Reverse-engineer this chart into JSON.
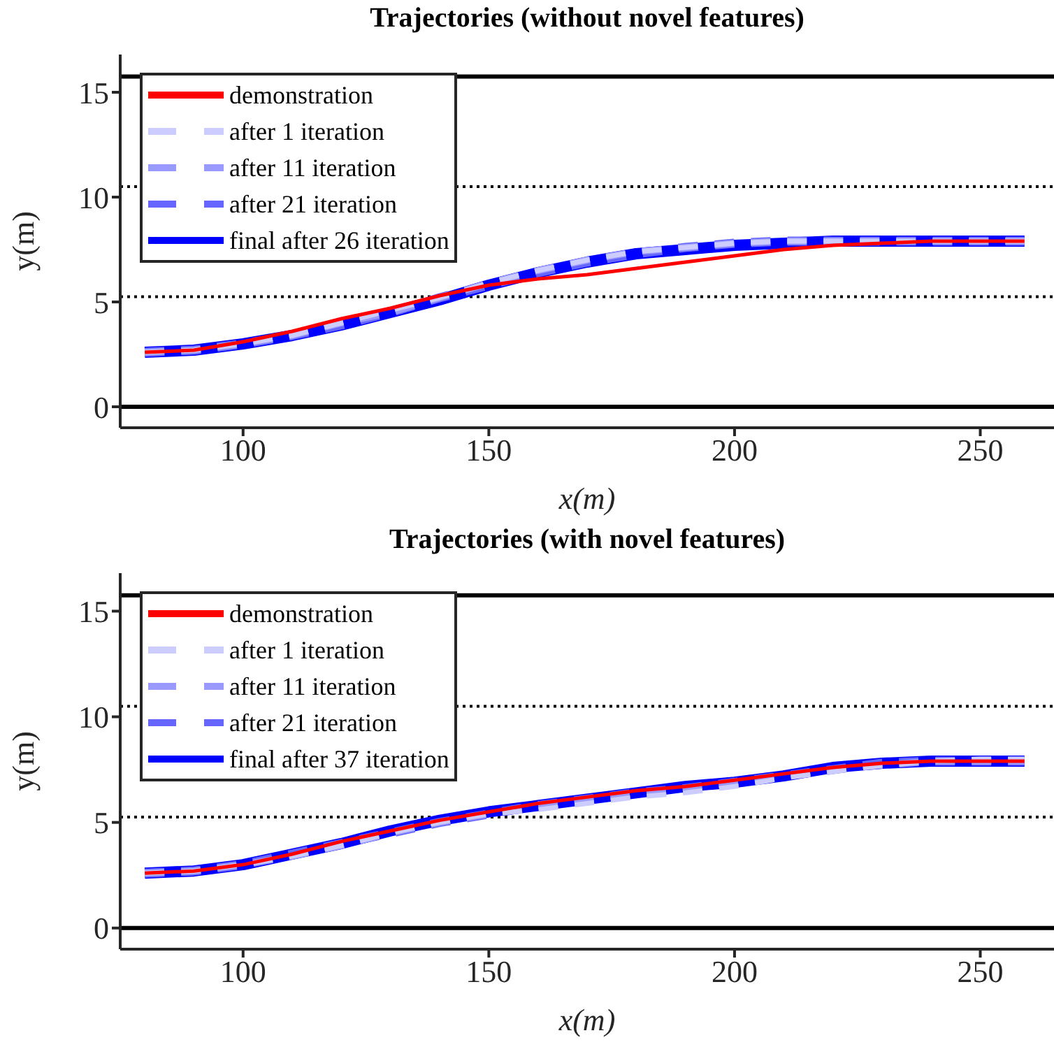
{
  "chart_data": [
    {
      "type": "line",
      "title": "Trajectories (without novel features)",
      "xlabel": "x(m)",
      "ylabel": "y(m)",
      "xlim": [
        75,
        265
      ],
      "xticks": [
        100,
        150,
        200,
        250
      ],
      "ylim": [
        -1,
        16.8
      ],
      "yticks": [
        0,
        5,
        10,
        15
      ],
      "grid": false,
      "legend": "top left",
      "marker": "none",
      "ref_lines": [
        {
          "axis": "y",
          "value": 0,
          "color": "#000000",
          "line_style": "solid"
        },
        {
          "axis": "y",
          "value": 5.25,
          "color": "#000000",
          "line_style": "dotted"
        },
        {
          "axis": "y",
          "value": 10.5,
          "color": "#000000",
          "line_style": "dotted"
        },
        {
          "axis": "y",
          "value": 15.75,
          "color": "#000000",
          "line_style": "solid"
        }
      ],
      "x": [
        80,
        90,
        100,
        110,
        120,
        130,
        140,
        150,
        160,
        170,
        180,
        190,
        200,
        210,
        220,
        230,
        240,
        250,
        259
      ],
      "series": [
        {
          "name": "demonstration",
          "color": "#ff0000",
          "line_style": "solid",
          "values": [
            2.6,
            2.7,
            3.1,
            3.6,
            4.2,
            4.7,
            5.3,
            5.8,
            6.1,
            6.3,
            6.6,
            6.9,
            7.2,
            7.5,
            7.7,
            7.8,
            7.9,
            7.9,
            7.9
          ]
        },
        {
          "name": "after 1 iteration",
          "color": "#ccccff",
          "line_style": "dashed",
          "values": [
            2.6,
            2.7,
            3.0,
            3.4,
            4.0,
            4.6,
            5.2,
            5.9,
            6.5,
            7.0,
            7.4,
            7.6,
            7.8,
            7.9,
            7.9,
            7.9,
            7.9,
            7.9,
            7.9
          ]
        },
        {
          "name": "after 11 iteration",
          "color": "#9999ff",
          "line_style": "dashed",
          "values": [
            2.6,
            2.7,
            3.0,
            3.4,
            4.0,
            4.5,
            5.2,
            5.9,
            6.5,
            7.0,
            7.4,
            7.6,
            7.8,
            7.9,
            7.9,
            7.9,
            7.9,
            7.9,
            7.9
          ]
        },
        {
          "name": "after 21 iteration",
          "color": "#6666ff",
          "line_style": "dashed",
          "values": [
            2.6,
            2.7,
            3.0,
            3.4,
            3.9,
            4.5,
            5.2,
            5.8,
            6.4,
            6.9,
            7.3,
            7.6,
            7.8,
            7.9,
            7.9,
            7.9,
            7.9,
            7.9,
            7.9
          ]
        },
        {
          "name": "final after 26 iteration",
          "color": "#0000ff",
          "line_style": "solid",
          "values": [
            2.6,
            2.7,
            3.0,
            3.4,
            3.9,
            4.5,
            5.1,
            5.8,
            6.4,
            6.9,
            7.3,
            7.5,
            7.7,
            7.8,
            7.9,
            7.9,
            7.9,
            7.9,
            7.9
          ]
        }
      ]
    },
    {
      "type": "line",
      "title": "Trajectories (with novel features)",
      "xlabel": "x(m)",
      "ylabel": "y(m)",
      "xlim": [
        75,
        265
      ],
      "xticks": [
        100,
        150,
        200,
        250
      ],
      "ylim": [
        -1,
        16.8
      ],
      "yticks": [
        0,
        5,
        10,
        15
      ],
      "grid": false,
      "legend": "top left",
      "marker": "none",
      "ref_lines": [
        {
          "axis": "y",
          "value": 0,
          "color": "#000000",
          "line_style": "solid"
        },
        {
          "axis": "y",
          "value": 5.25,
          "color": "#000000",
          "line_style": "dotted"
        },
        {
          "axis": "y",
          "value": 10.5,
          "color": "#000000",
          "line_style": "dotted"
        },
        {
          "axis": "y",
          "value": 15.75,
          "color": "#000000",
          "line_style": "solid"
        }
      ],
      "x": [
        80,
        90,
        100,
        110,
        120,
        130,
        140,
        150,
        160,
        170,
        180,
        190,
        200,
        210,
        220,
        230,
        240,
        250,
        259
      ],
      "series": [
        {
          "name": "demonstration",
          "color": "#ff0000",
          "line_style": "solid",
          "values": [
            2.6,
            2.7,
            3.0,
            3.5,
            4.1,
            4.6,
            5.1,
            5.5,
            5.9,
            6.2,
            6.5,
            6.7,
            7.0,
            7.3,
            7.6,
            7.8,
            7.9,
            7.9,
            7.9
          ]
        },
        {
          "name": "after 1 iteration",
          "color": "#ccccff",
          "line_style": "dashed",
          "values": [
            2.6,
            2.7,
            3.0,
            3.4,
            3.9,
            4.5,
            5.0,
            5.4,
            5.6,
            5.9,
            6.2,
            6.4,
            6.7,
            7.1,
            7.4,
            7.7,
            7.9,
            8.0,
            8.0
          ]
        },
        {
          "name": "after 11 iteration",
          "color": "#9999ff",
          "line_style": "dashed",
          "values": [
            2.6,
            2.7,
            3.0,
            3.4,
            3.9,
            4.5,
            5.0,
            5.4,
            5.7,
            6.0,
            6.3,
            6.5,
            6.8,
            7.2,
            7.5,
            7.7,
            7.9,
            7.9,
            7.9
          ]
        },
        {
          "name": "after 21 iteration",
          "color": "#6666ff",
          "line_style": "dashed",
          "values": [
            2.6,
            2.7,
            3.0,
            3.5,
            4.0,
            4.5,
            5.0,
            5.4,
            5.8,
            6.1,
            6.4,
            6.6,
            6.9,
            7.2,
            7.5,
            7.8,
            7.9,
            7.9,
            7.9
          ]
        },
        {
          "name": "final after 37 iteration",
          "color": "#0000ff",
          "line_style": "solid",
          "values": [
            2.6,
            2.7,
            3.0,
            3.5,
            4.0,
            4.6,
            5.1,
            5.5,
            5.8,
            6.1,
            6.4,
            6.7,
            6.9,
            7.2,
            7.6,
            7.8,
            7.9,
            7.9,
            7.9
          ]
        }
      ]
    }
  ]
}
